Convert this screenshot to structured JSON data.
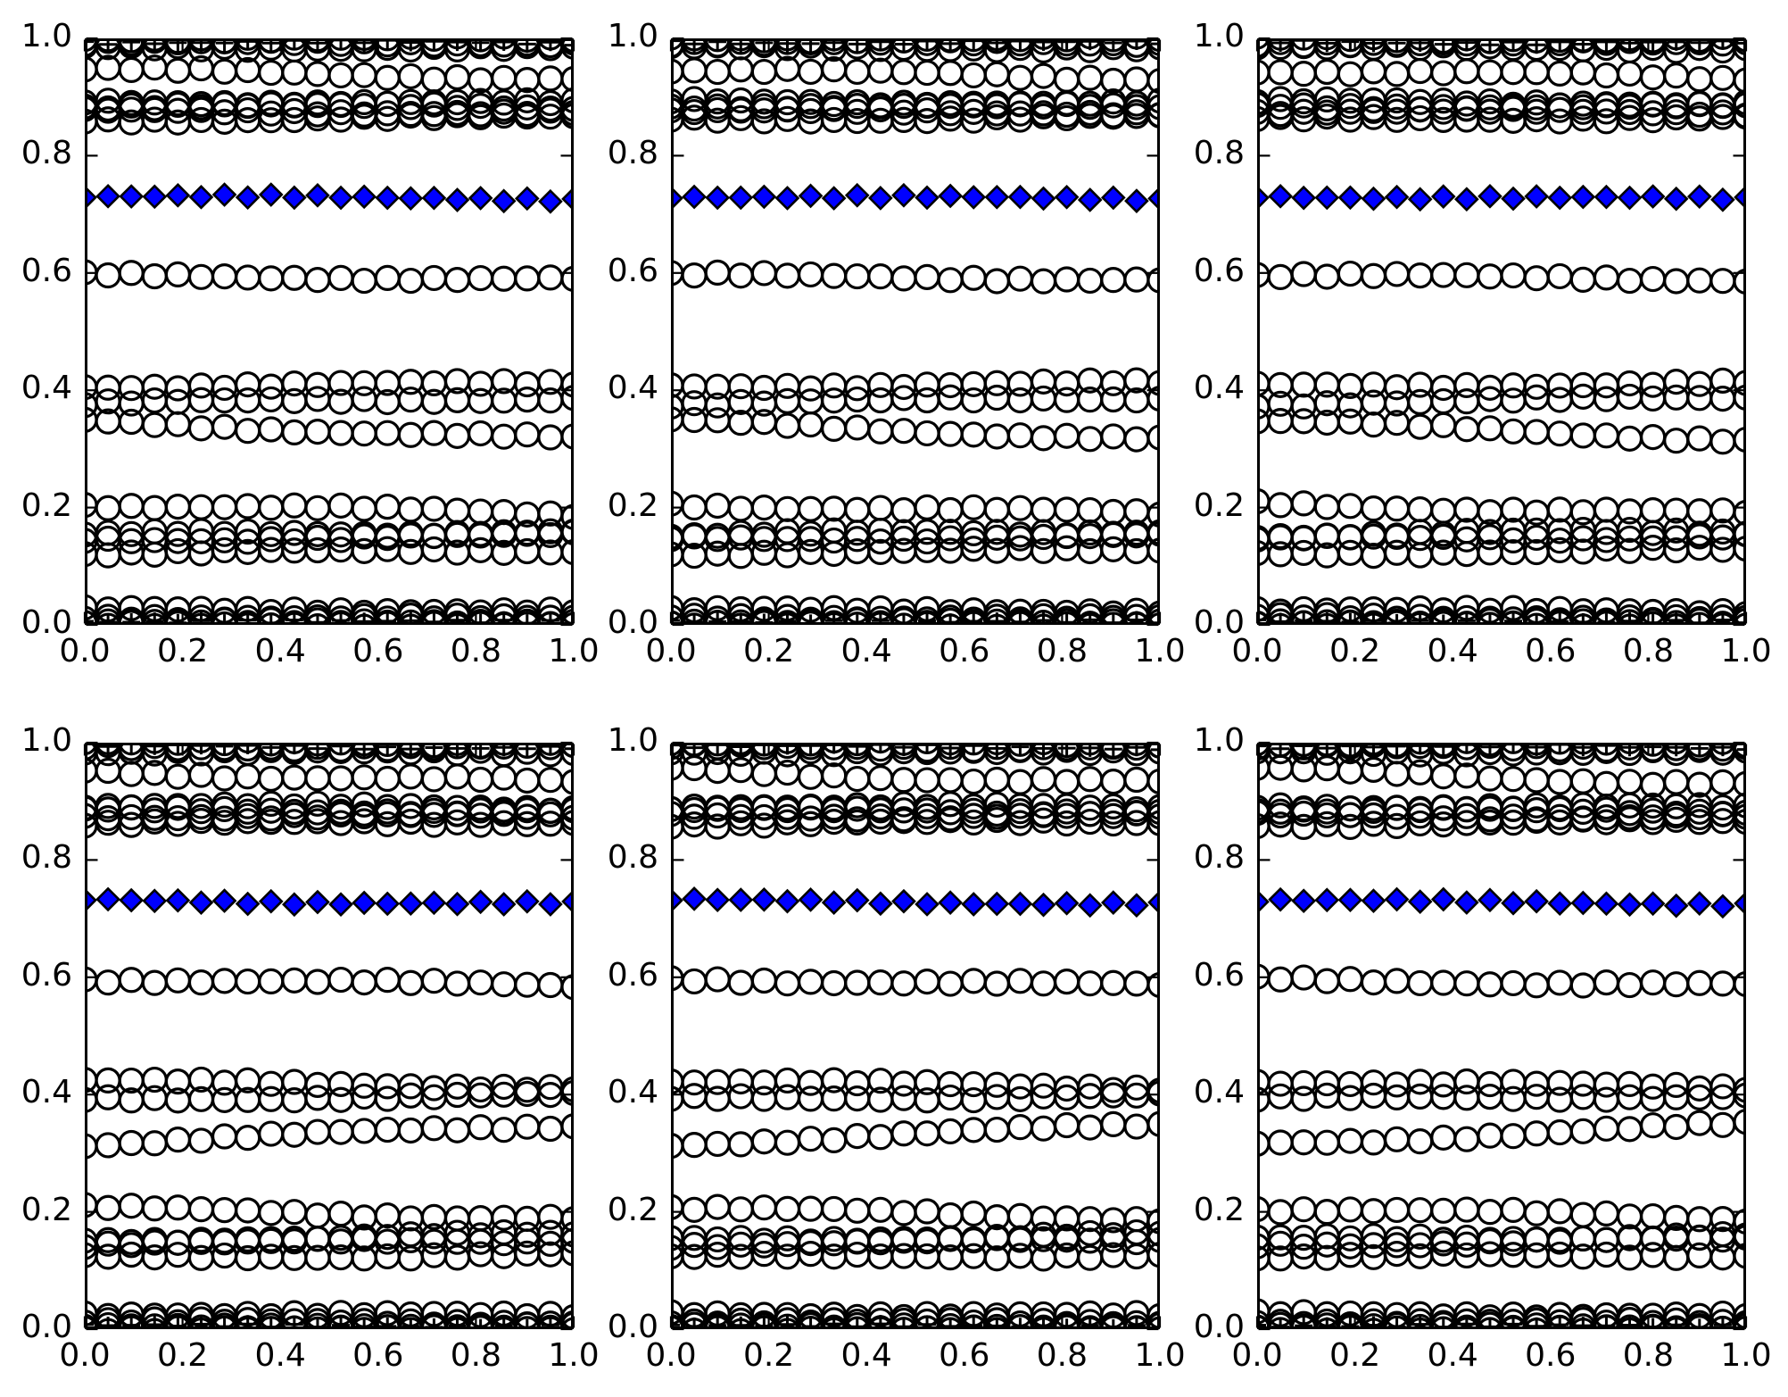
{
  "figure": {
    "background": "#ffffff",
    "description": "2x3 grid of scatter subplots; horizontal bands of open black circles, black plus markers at top and bottom edges, and one row of blue filled diamonds near y=0.73 in every subplot"
  },
  "chart_data": {
    "type": "scatter",
    "grid": {
      "rows": 2,
      "cols": 3
    },
    "xlim": [
      0.0,
      1.0
    ],
    "ylim": [
      0.0,
      1.0
    ],
    "xtick_labels": [
      "0.0",
      "0.2",
      "0.4",
      "0.6",
      "0.8",
      "1.0"
    ],
    "ytick_labels": [
      "0.0",
      "0.2",
      "0.4",
      "0.6",
      "0.8",
      "1.0"
    ],
    "tick_values": [
      0.0,
      0.2,
      0.4,
      0.6,
      0.8,
      1.0
    ],
    "grid_lines": false,
    "legend": null,
    "title": "",
    "xlabel": "",
    "ylabel": "",
    "n_points_per_row": 22,
    "jitter": 0.0025,
    "colors": {
      "marker_edge": "#000000",
      "diamond_fill": "#0000ff",
      "axes_edge": "#000000",
      "background": "#ffffff"
    },
    "row_sets": {
      "top": [
        {
          "marker": "circle",
          "y_start": 1.0,
          "y_end": 0.999,
          "wiggle": 0.002
        },
        {
          "marker": "circle",
          "y_start": 0.993,
          "y_end": 0.992,
          "wiggle": 0.002
        },
        {
          "marker": "circle",
          "y_start": 0.985,
          "y_end": 0.983,
          "wiggle": 0.002
        },
        {
          "marker": "plus",
          "y_start": 0.994,
          "y_end": 0.992,
          "wiggle": 0.002
        },
        {
          "marker": "circle",
          "y_start": 0.946,
          "y_end": 0.932,
          "wiggle": 0.004
        },
        {
          "marker": "circle",
          "y_start": 0.892,
          "y_end": 0.889,
          "wiggle": 0.003
        },
        {
          "marker": "circle",
          "y_start": 0.885,
          "y_end": 0.883,
          "wiggle": 0.003
        },
        {
          "marker": "circle",
          "y_start": 0.875,
          "y_end": 0.874,
          "wiggle": 0.003
        },
        {
          "marker": "circle",
          "y_start": 0.861,
          "y_end": 0.865,
          "wiggle": 0.003
        },
        {
          "marker": "diamond",
          "y_start": 0.731,
          "y_end": 0.726,
          "wiggle": 0.002
        },
        {
          "marker": "circle",
          "y_start": 0.596,
          "y_end": 0.589,
          "wiggle": 0.003
        },
        {
          "marker": "circle",
          "y_start": 0.407,
          "y_end": 0.412,
          "wiggle": 0.003
        },
        {
          "marker": "circle",
          "y_start": 0.377,
          "y_end": 0.387,
          "wiggle": 0.003
        },
        {
          "marker": "circle",
          "y_start": 0.347,
          "y_end": 0.316,
          "wiggle": 0.004
        },
        {
          "marker": "circle",
          "y_start": 0.206,
          "y_end": 0.189,
          "wiggle": 0.004
        },
        {
          "marker": "circle",
          "y_start": 0.152,
          "y_end": 0.16,
          "wiggle": 0.004
        },
        {
          "marker": "circle",
          "y_start": 0.145,
          "y_end": 0.152,
          "wiggle": 0.004
        },
        {
          "marker": "circle",
          "y_start": 0.122,
          "y_end": 0.127,
          "wiggle": 0.003
        },
        {
          "marker": "circle",
          "y_start": 0.026,
          "y_end": 0.023,
          "wiggle": 0.002
        },
        {
          "marker": "circle",
          "y_start": 0.013,
          "y_end": 0.011,
          "wiggle": 0.002
        },
        {
          "marker": "circle",
          "y_start": 0.005,
          "y_end": 0.004,
          "wiggle": 0.001
        },
        {
          "marker": "circle",
          "y_start": 0.0,
          "y_end": 0.0,
          "wiggle": 0.001
        },
        {
          "marker": "plus",
          "y_start": 0.006,
          "y_end": 0.005,
          "wiggle": 0.001
        }
      ],
      "bottom": [
        {
          "marker": "circle",
          "y_start": 1.0,
          "y_end": 0.999,
          "wiggle": 0.002
        },
        {
          "marker": "circle",
          "y_start": 0.993,
          "y_end": 0.992,
          "wiggle": 0.002
        },
        {
          "marker": "circle",
          "y_start": 0.985,
          "y_end": 0.983,
          "wiggle": 0.002
        },
        {
          "marker": "plus",
          "y_start": 0.994,
          "y_end": 0.992,
          "wiggle": 0.002
        },
        {
          "marker": "circle",
          "y_start": 0.953,
          "y_end": 0.93,
          "wiggle": 0.005
        },
        {
          "marker": "circle",
          "y_start": 0.892,
          "y_end": 0.889,
          "wiggle": 0.003
        },
        {
          "marker": "circle",
          "y_start": 0.885,
          "y_end": 0.883,
          "wiggle": 0.003
        },
        {
          "marker": "circle",
          "y_start": 0.875,
          "y_end": 0.874,
          "wiggle": 0.003
        },
        {
          "marker": "circle",
          "y_start": 0.861,
          "y_end": 0.865,
          "wiggle": 0.003
        },
        {
          "marker": "diamond",
          "y_start": 0.731,
          "y_end": 0.725,
          "wiggle": 0.002
        },
        {
          "marker": "circle",
          "y_start": 0.597,
          "y_end": 0.586,
          "wiggle": 0.003
        },
        {
          "marker": "circle",
          "y_start": 0.423,
          "y_end": 0.412,
          "wiggle": 0.003
        },
        {
          "marker": "circle",
          "y_start": 0.392,
          "y_end": 0.398,
          "wiggle": 0.003
        },
        {
          "marker": "circle",
          "y_start": 0.316,
          "y_end": 0.348,
          "wiggle": 0.004
        },
        {
          "marker": "circle",
          "y_start": 0.206,
          "y_end": 0.189,
          "wiggle": 0.004
        },
        {
          "marker": "circle",
          "y_start": 0.152,
          "y_end": 0.16,
          "wiggle": 0.004
        },
        {
          "marker": "circle",
          "y_start": 0.145,
          "y_end": 0.152,
          "wiggle": 0.004
        },
        {
          "marker": "circle",
          "y_start": 0.122,
          "y_end": 0.127,
          "wiggle": 0.003
        },
        {
          "marker": "circle",
          "y_start": 0.026,
          "y_end": 0.023,
          "wiggle": 0.002
        },
        {
          "marker": "circle",
          "y_start": 0.013,
          "y_end": 0.011,
          "wiggle": 0.002
        },
        {
          "marker": "circle",
          "y_start": 0.005,
          "y_end": 0.004,
          "wiggle": 0.001
        },
        {
          "marker": "circle",
          "y_start": 0.0,
          "y_end": 0.0,
          "wiggle": 0.001
        },
        {
          "marker": "plus",
          "y_start": 0.006,
          "y_end": 0.005,
          "wiggle": 0.001
        }
      ]
    },
    "panels": [
      {
        "name": "subplot-r1c1",
        "row_set": "top",
        "seed": 3
      },
      {
        "name": "subplot-r1c2",
        "row_set": "top",
        "seed": 7
      },
      {
        "name": "subplot-r1c3",
        "row_set": "top",
        "seed": 11
      },
      {
        "name": "subplot-r2c1",
        "row_set": "bottom",
        "seed": 5
      },
      {
        "name": "subplot-r2c2",
        "row_set": "bottom",
        "seed": 9
      },
      {
        "name": "subplot-r2c3",
        "row_set": "bottom",
        "seed": 13
      }
    ]
  }
}
